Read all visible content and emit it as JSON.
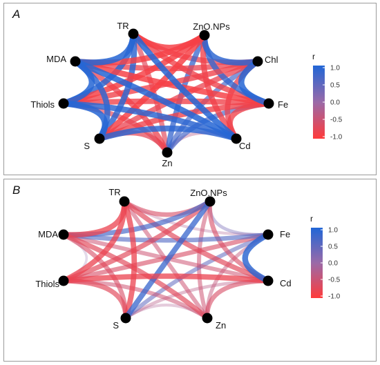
{
  "colors": {
    "positive": "#2166d6",
    "neutral": "#9a6aa8",
    "negative": "#ff3b3b"
  },
  "legend": {
    "title": "r",
    "ticks": [
      "1.0",
      "0.5",
      "0.0",
      "-0.5",
      "-1.0"
    ]
  },
  "panels": [
    {
      "letter": "A",
      "nodes": [
        {
          "id": "TR",
          "label": "TR"
        },
        {
          "id": "ZnO.NPs",
          "label": "ZnO.NPs"
        },
        {
          "id": "Chl",
          "label": "Chl"
        },
        {
          "id": "Fe",
          "label": "Fe"
        },
        {
          "id": "Cd",
          "label": "Cd"
        },
        {
          "id": "Zn",
          "label": "Zn"
        },
        {
          "id": "S",
          "label": "S"
        },
        {
          "id": "Thiols",
          "label": "Thiols"
        },
        {
          "id": "MDA",
          "label": "MDA"
        }
      ],
      "edges": [
        [
          "TR",
          "ZnO.NPs",
          -0.9
        ],
        [
          "TR",
          "Chl",
          -0.8
        ],
        [
          "TR",
          "Fe",
          -0.85
        ],
        [
          "TR",
          "Cd",
          0.95
        ],
        [
          "TR",
          "Zn",
          -0.7
        ],
        [
          "TR",
          "S",
          0.9
        ],
        [
          "TR",
          "Thiols",
          0.9
        ],
        [
          "TR",
          "MDA",
          0.95
        ],
        [
          "ZnO.NPs",
          "Chl",
          0.9
        ],
        [
          "ZnO.NPs",
          "Fe",
          0.85
        ],
        [
          "ZnO.NPs",
          "Cd",
          -0.85
        ],
        [
          "ZnO.NPs",
          "Zn",
          0.8
        ],
        [
          "ZnO.NPs",
          "S",
          -0.9
        ],
        [
          "ZnO.NPs",
          "Thiols",
          -0.9
        ],
        [
          "ZnO.NPs",
          "MDA",
          -0.9
        ],
        [
          "Chl",
          "Fe",
          0.95
        ],
        [
          "Chl",
          "Cd",
          -0.8
        ],
        [
          "Chl",
          "Zn",
          0.7
        ],
        [
          "Chl",
          "S",
          -0.8
        ],
        [
          "Chl",
          "Thiols",
          -0.85
        ],
        [
          "Chl",
          "MDA",
          -0.8
        ],
        [
          "Fe",
          "Cd",
          -0.85
        ],
        [
          "Fe",
          "Zn",
          0.7
        ],
        [
          "Fe",
          "S",
          -0.85
        ],
        [
          "Fe",
          "Thiols",
          -0.85
        ],
        [
          "Fe",
          "MDA",
          -0.9
        ],
        [
          "Cd",
          "Zn",
          -0.3
        ],
        [
          "Cd",
          "S",
          0.9
        ],
        [
          "Cd",
          "Thiols",
          0.9
        ],
        [
          "Cd",
          "MDA",
          0.95
        ],
        [
          "Zn",
          "S",
          -0.75
        ],
        [
          "Zn",
          "Thiols",
          -0.7
        ],
        [
          "Zn",
          "MDA",
          -0.8
        ],
        [
          "S",
          "Thiols",
          0.95
        ],
        [
          "S",
          "MDA",
          0.9
        ],
        [
          "Thiols",
          "MDA",
          0.95
        ]
      ]
    },
    {
      "letter": "B",
      "nodes": [
        {
          "id": "TR",
          "label": "TR"
        },
        {
          "id": "ZnO.NPs",
          "label": "ZnO.NPs"
        },
        {
          "id": "Fe",
          "label": "Fe"
        },
        {
          "id": "Cd",
          "label": "Cd"
        },
        {
          "id": "Zn",
          "label": "Zn"
        },
        {
          "id": "S",
          "label": "S"
        },
        {
          "id": "Thiols",
          "label": "Thiols"
        },
        {
          "id": "MDA",
          "label": "MDA"
        }
      ],
      "edges": [
        [
          "TR",
          "ZnO.NPs",
          -0.6
        ],
        [
          "TR",
          "Fe",
          -0.2
        ],
        [
          "TR",
          "Cd",
          -0.7
        ],
        [
          "TR",
          "Zn",
          -0.5
        ],
        [
          "TR",
          "S",
          -0.8
        ],
        [
          "TR",
          "Thiols",
          -0.8
        ],
        [
          "TR",
          "MDA",
          -0.8
        ],
        [
          "ZnO.NPs",
          "Fe",
          0.3
        ],
        [
          "ZnO.NPs",
          "Cd",
          -0.6
        ],
        [
          "ZnO.NPs",
          "Zn",
          -0.5
        ],
        [
          "ZnO.NPs",
          "S",
          0.8
        ],
        [
          "ZnO.NPs",
          "Thiols",
          -0.7
        ],
        [
          "ZnO.NPs",
          "MDA",
          0.7
        ],
        [
          "Fe",
          "Cd",
          0.9
        ],
        [
          "Fe",
          "Zn",
          -0.4
        ],
        [
          "Fe",
          "S",
          0.5
        ],
        [
          "Fe",
          "Thiols",
          -0.6
        ],
        [
          "Fe",
          "MDA",
          0.6
        ],
        [
          "Cd",
          "Zn",
          -0.6
        ],
        [
          "Cd",
          "S",
          -0.3
        ],
        [
          "Cd",
          "Thiols",
          -0.8
        ],
        [
          "Cd",
          "MDA",
          -0.5
        ],
        [
          "Zn",
          "S",
          -0.2
        ],
        [
          "Zn",
          "Thiols",
          -0.5
        ],
        [
          "Zn",
          "MDA",
          -0.7
        ],
        [
          "S",
          "Thiols",
          -0.7
        ],
        [
          "S",
          "MDA",
          -0.6
        ],
        [
          "Thiols",
          "MDA",
          0.1
        ]
      ]
    }
  ]
}
